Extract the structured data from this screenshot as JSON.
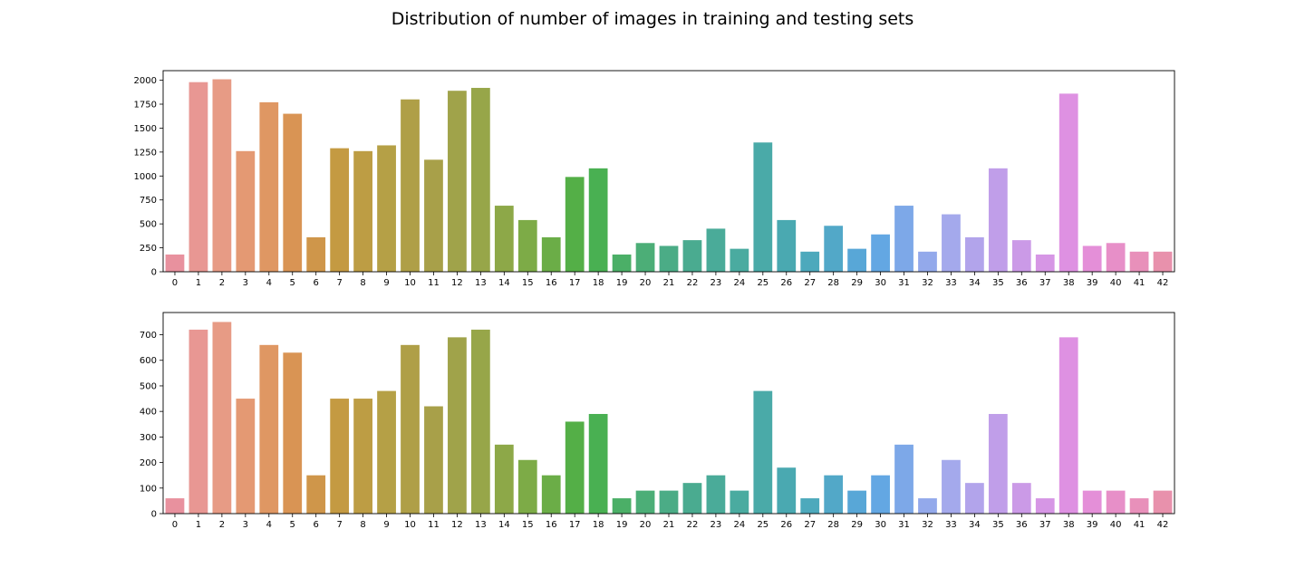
{
  "figure": {
    "title": "Distribution of number of images in training and testing sets"
  },
  "chart_data": [
    {
      "type": "bar",
      "title": "",
      "xlabel": "",
      "ylabel": "",
      "categories": [
        "0",
        "1",
        "2",
        "3",
        "4",
        "5",
        "6",
        "7",
        "8",
        "9",
        "10",
        "11",
        "12",
        "13",
        "14",
        "15",
        "16",
        "17",
        "18",
        "19",
        "20",
        "21",
        "22",
        "23",
        "24",
        "25",
        "26",
        "27",
        "28",
        "29",
        "30",
        "31",
        "32",
        "33",
        "34",
        "35",
        "36",
        "37",
        "38",
        "39",
        "40",
        "41",
        "42"
      ],
      "values": [
        180,
        1980,
        2010,
        1260,
        1770,
        1650,
        360,
        1290,
        1260,
        1320,
        1800,
        1170,
        1890,
        1920,
        690,
        540,
        360,
        990,
        1080,
        180,
        300,
        270,
        330,
        450,
        240,
        1350,
        540,
        210,
        480,
        240,
        390,
        690,
        210,
        600,
        360,
        1080,
        330,
        180,
        1860,
        270,
        300,
        210,
        210
      ],
      "ylim": [
        0,
        2100
      ],
      "yticks": [
        0,
        250,
        500,
        750,
        1000,
        1250,
        1500,
        1750,
        2000
      ],
      "grid": false
    },
    {
      "type": "bar",
      "title": "",
      "xlabel": "",
      "ylabel": "",
      "categories": [
        "0",
        "1",
        "2",
        "3",
        "4",
        "5",
        "6",
        "7",
        "8",
        "9",
        "10",
        "11",
        "12",
        "13",
        "14",
        "15",
        "16",
        "17",
        "18",
        "19",
        "20",
        "21",
        "22",
        "23",
        "24",
        "25",
        "26",
        "27",
        "28",
        "29",
        "30",
        "31",
        "32",
        "33",
        "34",
        "35",
        "36",
        "37",
        "38",
        "39",
        "40",
        "41",
        "42"
      ],
      "values": [
        60,
        720,
        750,
        450,
        660,
        630,
        150,
        450,
        450,
        480,
        660,
        420,
        690,
        720,
        270,
        210,
        150,
        360,
        390,
        60,
        90,
        90,
        120,
        150,
        90,
        480,
        180,
        60,
        150,
        90,
        150,
        270,
        60,
        210,
        120,
        390,
        120,
        60,
        690,
        90,
        90,
        60,
        90
      ],
      "ylim": [
        0,
        787
      ],
      "yticks": [
        0,
        100,
        200,
        300,
        400,
        500,
        600,
        700
      ],
      "grid": false
    }
  ],
  "palette": [
    "#e8919e",
    "#e89c8a",
    "#e2986a",
    "#d79350",
    "#c49a42",
    "#b7a046",
    "#ac9e48",
    "#9ea44a",
    "#8da848",
    "#71ad47",
    "#48b047",
    "#4caf6c",
    "#4bac86",
    "#4aab97",
    "#4aaba4",
    "#4aa9b3",
    "#52a8c8",
    "#5da7e2",
    "#8aa9ea",
    "#a8a9ec",
    "#c09ee9",
    "#d497e6",
    "#e28fe0",
    "#e88fc4",
    "#e891ac"
  ]
}
